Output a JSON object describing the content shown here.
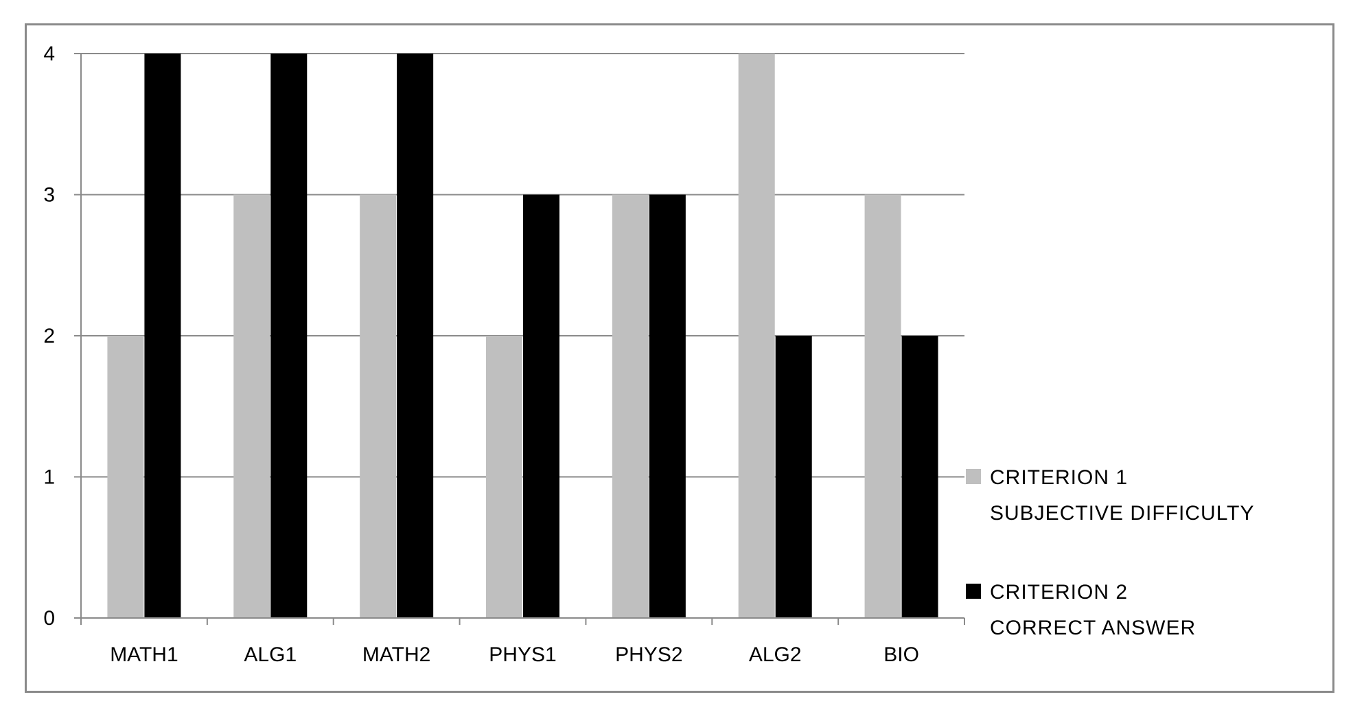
{
  "chart_data": {
    "type": "bar",
    "categories": [
      "MATH1",
      "ALG1",
      "MATH2",
      "PHYS1",
      "PHYS2",
      "ALG2",
      "BIO"
    ],
    "series": [
      {
        "name": "CRITERION 1 SUBJECTIVE DIFFICULTY",
        "legend_lines": [
          "CRITERION  1",
          "SUBJECTIVE DIFFICULTY"
        ],
        "color": "#bfbfbf",
        "values": [
          2,
          3,
          3,
          2,
          3,
          4,
          3
        ]
      },
      {
        "name": "CRITERION 2 CORRECT ANSWER",
        "legend_lines": [
          "CRITERION 2",
          "CORRECT ANSWER"
        ],
        "color": "#000000",
        "values": [
          4,
          4,
          4,
          3,
          3,
          2,
          2
        ]
      }
    ],
    "y_ticks": [
      "0",
      "1",
      "2",
      "3",
      "4"
    ],
    "ylim": [
      0,
      4
    ],
    "grid": true,
    "legend_position": "right",
    "title": "",
    "xlabel": "",
    "ylabel": ""
  }
}
